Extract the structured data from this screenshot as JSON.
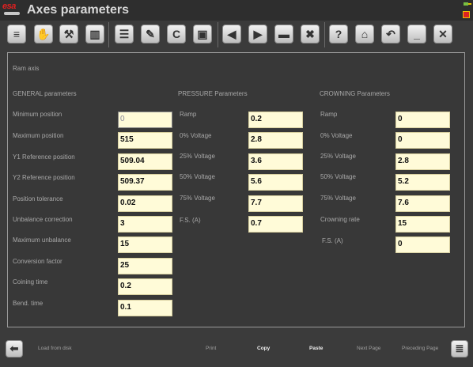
{
  "window": {
    "logo_text": "esa",
    "title": "Axes parameters"
  },
  "toolbar": {
    "buttons": [
      {
        "name": "document-icon",
        "glyph": "≡"
      },
      {
        "name": "hand-icon",
        "glyph": "✋"
      },
      {
        "name": "wrench-icon",
        "glyph": "🔧"
      },
      {
        "name": "factory-icon",
        "glyph": "▥"
      },
      {
        "name": "database-icon",
        "glyph": "☰"
      },
      {
        "name": "database-edit-icon",
        "glyph": "✎"
      },
      {
        "name": "c-icon",
        "glyph": "C"
      },
      {
        "name": "save-icon",
        "glyph": "▣"
      },
      {
        "name": "arrow-left-icon",
        "glyph": "◀"
      },
      {
        "name": "arrow-right-icon",
        "glyph": "▶"
      },
      {
        "name": "field-icon",
        "glyph": "▬"
      },
      {
        "name": "trash-icon",
        "glyph": "🗑"
      },
      {
        "name": "help-icon",
        "glyph": "?"
      },
      {
        "name": "home-icon",
        "glyph": "⌂"
      },
      {
        "name": "undo-icon",
        "glyph": "↶"
      },
      {
        "name": "minimize-icon",
        "glyph": "_"
      },
      {
        "name": "close-icon",
        "glyph": "✕"
      }
    ]
  },
  "panel": {
    "axis_label": "Ram axis",
    "general": {
      "header": "GENERAL parameters",
      "rows": [
        {
          "label": "Minimum position",
          "value": "0"
        },
        {
          "label": "Maximum position",
          "value": "515"
        },
        {
          "label": "Y1 Reference position",
          "value": "509.04"
        },
        {
          "label": "Y2 Reference position",
          "value": "509.37"
        },
        {
          "label": "Position tolerance",
          "value": "0.02"
        },
        {
          "label": "Unbalance correction",
          "value": "3"
        },
        {
          "label": "Maximum unbalance",
          "value": "15"
        },
        {
          "label": "Conversion factor",
          "value": "25"
        },
        {
          "label": "Coining time",
          "value": "0.2"
        },
        {
          "label": "Bend. time",
          "value": "0.1"
        }
      ]
    },
    "pressure": {
      "header": "PRESSURE Parameters",
      "rows": [
        {
          "label": "Ramp",
          "value": "0.2"
        },
        {
          "label": "0% Voltage",
          "value": "2.8"
        },
        {
          "label": "25% Voltage",
          "value": "3.6"
        },
        {
          "label": "50% Voltage",
          "value": "5.6"
        },
        {
          "label": "75% Voltage",
          "value": "7.7"
        },
        {
          "label": "F.S. (A)",
          "value": "0.7"
        }
      ]
    },
    "crowning": {
      "header": "CROWNING Parameters",
      "rows": [
        {
          "label": "Ramp",
          "value": "0"
        },
        {
          "label": "0% Voltage",
          "value": "0"
        },
        {
          "label": "25% Voltage",
          "value": "2.8"
        },
        {
          "label": "50% Voltage",
          "value": "5.2"
        },
        {
          "label": "75% Voltage",
          "value": "7.6"
        },
        {
          "label": "Crowning rate",
          "value": "15"
        },
        {
          "label": "F.S. (A)",
          "value": "0"
        }
      ]
    }
  },
  "bottom": {
    "load": "Load from disk",
    "print": "Print",
    "copy": "Copy",
    "paste": "Paste",
    "next": "Next Page",
    "preceding": "Preceding Page"
  }
}
